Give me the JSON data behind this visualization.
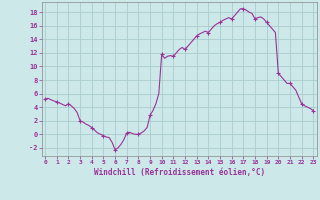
{
  "x": [
    0,
    0.25,
    0.5,
    0.75,
    1,
    1.25,
    1.5,
    1.75,
    2,
    2.25,
    2.5,
    2.75,
    3,
    3.25,
    3.5,
    3.75,
    4,
    4.25,
    4.5,
    4.75,
    5,
    5.25,
    5.5,
    5.75,
    6,
    6.25,
    6.5,
    6.75,
    7,
    7.25,
    7.5,
    7.75,
    8,
    8.25,
    8.5,
    8.75,
    9,
    9.25,
    9.5,
    9.75,
    10,
    10.25,
    10.5,
    10.75,
    11,
    11.25,
    11.5,
    11.75,
    12,
    12.25,
    12.5,
    12.75,
    13,
    13.25,
    13.5,
    13.75,
    14,
    14.25,
    14.5,
    14.75,
    15,
    15.25,
    15.5,
    15.75,
    16,
    16.25,
    16.5,
    16.75,
    17,
    17.25,
    17.5,
    17.75,
    18,
    18.25,
    18.5,
    18.75,
    19,
    19.25,
    19.5,
    19.75,
    20,
    20.25,
    20.5,
    20.75,
    21,
    21.25,
    21.5,
    21.75,
    22,
    22.25,
    22.5,
    22.75,
    23
  ],
  "y": [
    5.2,
    5.3,
    5.1,
    4.9,
    4.8,
    4.6,
    4.4,
    4.2,
    4.5,
    4.2,
    3.8,
    3.2,
    2.0,
    1.8,
    1.5,
    1.3,
    1.0,
    0.6,
    0.2,
    0.0,
    -0.2,
    -0.4,
    -0.5,
    -1.2,
    -2.3,
    -2.0,
    -1.5,
    -0.8,
    0.2,
    0.3,
    0.1,
    0.0,
    0.0,
    0.2,
    0.5,
    1.0,
    2.8,
    3.5,
    4.5,
    6.0,
    11.8,
    11.2,
    11.5,
    11.6,
    11.5,
    12.0,
    12.5,
    12.8,
    12.5,
    13.0,
    13.5,
    14.0,
    14.5,
    14.8,
    15.0,
    15.2,
    15.0,
    15.5,
    16.0,
    16.3,
    16.5,
    16.8,
    17.0,
    17.2,
    17.0,
    17.5,
    18.0,
    18.5,
    18.5,
    18.3,
    18.0,
    17.8,
    17.0,
    17.2,
    17.3,
    17.0,
    16.5,
    16.0,
    15.5,
    15.0,
    9.0,
    8.5,
    8.0,
    7.5,
    7.5,
    7.0,
    6.5,
    5.5,
    4.5,
    4.2,
    4.0,
    3.8,
    3.5
  ],
  "marker_x": [
    0,
    1,
    2,
    3,
    4,
    5,
    6,
    7,
    8,
    9,
    10,
    11,
    12,
    13,
    14,
    15,
    16,
    17,
    18,
    19,
    20,
    21,
    22,
    23
  ],
  "marker_y": [
    5.2,
    4.8,
    4.5,
    2.0,
    1.0,
    -0.2,
    -2.3,
    0.2,
    0.0,
    2.8,
    11.8,
    11.5,
    12.5,
    14.5,
    15.0,
    16.5,
    17.0,
    18.5,
    17.0,
    16.5,
    9.0,
    7.5,
    4.5,
    3.5
  ],
  "line_color": "#993399",
  "marker_size": 2.5,
  "bg_color": "#cce8e8",
  "grid_color": "#aacccc",
  "xlabel": "Windchill (Refroidissement éolien,°C)",
  "ylabel_ticks": [
    -2,
    0,
    2,
    4,
    6,
    8,
    10,
    12,
    14,
    16,
    18
  ],
  "xtick_labels": [
    "0",
    "1",
    "2",
    "3",
    "4",
    "5",
    "6",
    "7",
    "8",
    "9",
    "10",
    "11",
    "12",
    "13",
    "14",
    "15",
    "16",
    "17",
    "18",
    "19",
    "20",
    "21",
    "22",
    "23"
  ],
  "xlim": [
    -0.3,
    23.3
  ],
  "ylim": [
    -3.2,
    19.5
  ]
}
